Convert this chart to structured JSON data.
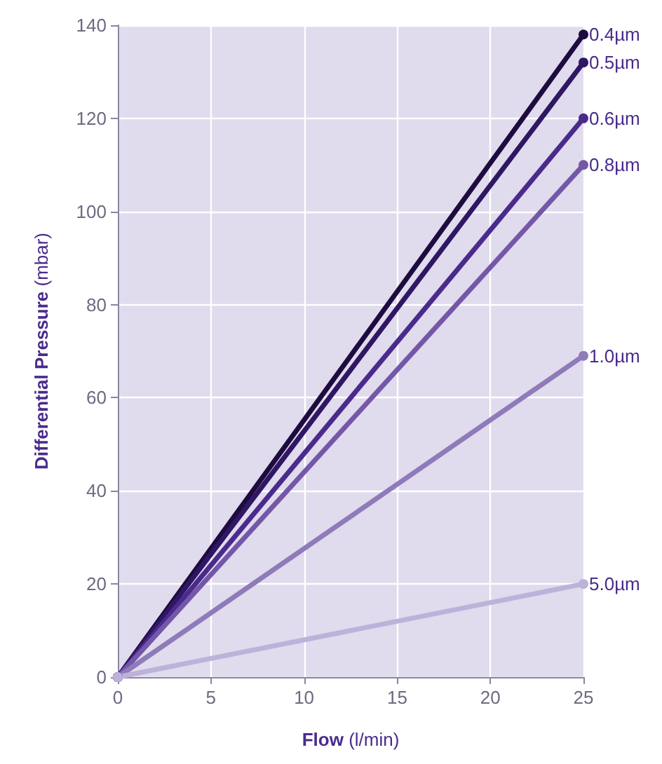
{
  "chart_data": {
    "type": "line",
    "xlabel": "Flow (l/min)",
    "ylabel": "Differential Pressure (mbar)",
    "x": [
      0,
      25
    ],
    "series": [
      {
        "name": "0.4µm",
        "color": "#1e0b3f",
        "values": [
          0,
          138
        ]
      },
      {
        "name": "0.5µm",
        "color": "#2f1764",
        "values": [
          0,
          132
        ]
      },
      {
        "name": "0.6µm",
        "color": "#4a2b8c",
        "values": [
          0,
          120
        ]
      },
      {
        "name": "0.8µm",
        "color": "#7457a8",
        "values": [
          0,
          110
        ]
      },
      {
        "name": "1.0µm",
        "color": "#8f7bb9",
        "values": [
          0,
          69
        ]
      },
      {
        "name": "5.0µm",
        "color": "#bdb2d9",
        "values": [
          0,
          20
        ]
      }
    ],
    "xlim": [
      0,
      25
    ],
    "xticks": [
      0,
      5,
      10,
      15,
      20,
      25
    ],
    "ylim": [
      0,
      140
    ],
    "yticks": [
      0,
      20,
      40,
      60,
      80,
      100,
      120,
      140
    ],
    "grid": true,
    "legend": false,
    "marker": "circle",
    "line_style": "solid"
  }
}
